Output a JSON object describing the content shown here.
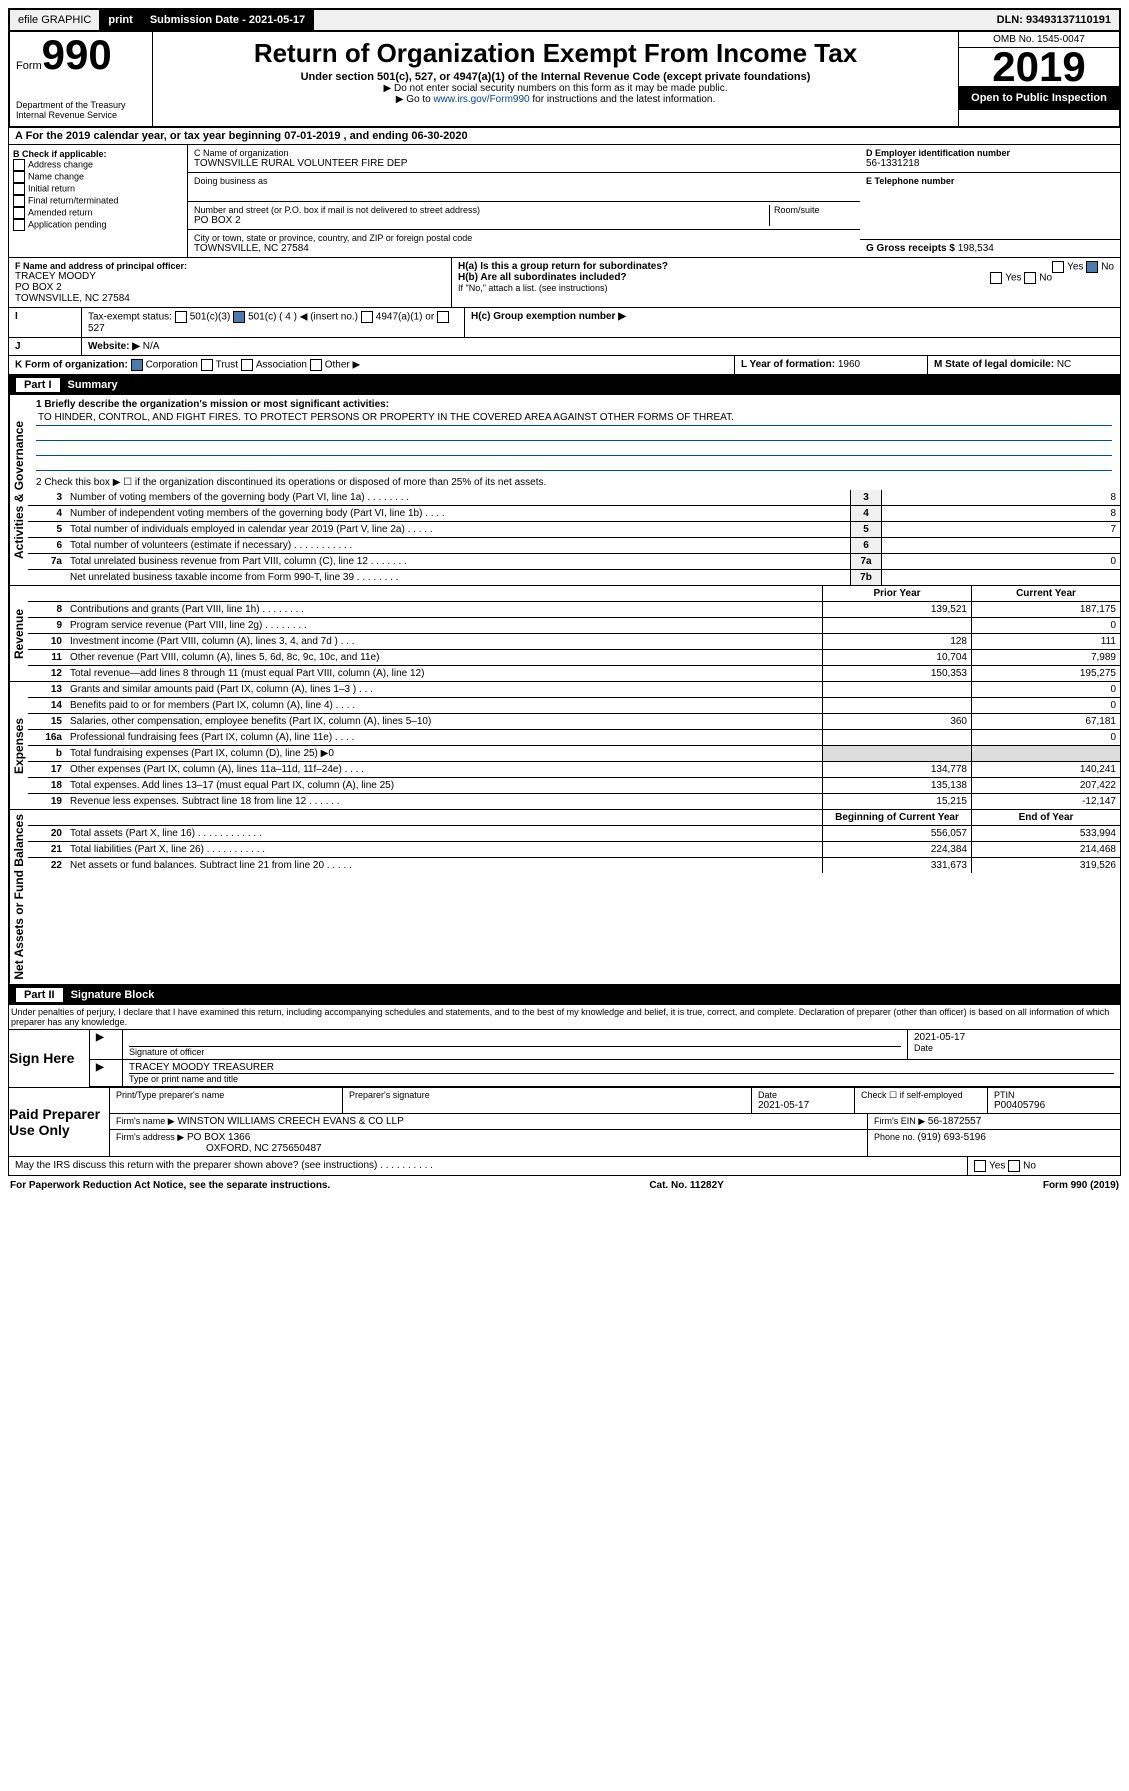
{
  "topbar": {
    "efile": "efile GRAPHIC",
    "print": "print",
    "sub_lbl": "Submission Date - ",
    "sub_date": "2021-05-17",
    "dln": "DLN: 93493137110191"
  },
  "hdr": {
    "form": "Form",
    "num": "990",
    "title": "Return of Organization Exempt From Income Tax",
    "sub": "Under section 501(c), 527, or 4947(a)(1) of the Internal Revenue Code (except private foundations)",
    "note1": "▶ Do not enter social security numbers on this form as it may be made public.",
    "note2a": "▶ Go to ",
    "note2link": "www.irs.gov/Form990",
    "note2b": " for instructions and the latest information.",
    "dept": "Department of the Treasury\nInternal Revenue Service",
    "omb": "OMB No. 1545-0047",
    "year": "2019",
    "badge": "Open to Public Inspection"
  },
  "a": {
    "txt": "For the 2019 calendar year, or tax year beginning 07-01-2019    , and ending 06-30-2020"
  },
  "b": {
    "hdr": "B Check if applicable:",
    "items": [
      "Address change",
      "Name change",
      "Initial return",
      "Final return/terminated",
      "Amended return",
      "Application pending"
    ]
  },
  "c": {
    "lbl": "C Name of organization",
    "name": "TOWNSVILLE RURAL VOLUNTEER FIRE DEP",
    "dba": "Doing business as",
    "addr_lbl": "Number and street (or P.O. box if mail is not delivered to street address)",
    "room": "Room/suite",
    "addr": "PO BOX 2",
    "city_lbl": "City or town, state or province, country, and ZIP or foreign postal code",
    "city": "TOWNSVILLE, NC  27584"
  },
  "d": {
    "lbl": "D Employer identification number",
    "val": "56-1331218"
  },
  "e": {
    "lbl": "E Telephone number"
  },
  "g": {
    "lbl": "G Gross receipts $ ",
    "val": "198,534"
  },
  "f": {
    "lbl": "F  Name and address of principal officer:",
    "name": "TRACEY MOODY",
    "addr": "PO BOX 2",
    "city": "TOWNSVILLE, NC  27584"
  },
  "h": {
    "a": "H(a)  Is this a group return for subordinates?",
    "b": "H(b)  Are all subordinates included?",
    "note": "If \"No,\" attach a list. (see instructions)",
    "c": "H(c)  Group exemption number ▶"
  },
  "i": {
    "lbl": "Tax-exempt status:",
    "opts": [
      "501(c)(3)",
      "501(c) ( 4 ) ◀ (insert no.)",
      "4947(a)(1) or",
      "527"
    ]
  },
  "j": {
    "lbl": "Website: ▶",
    "val": "N/A"
  },
  "k": {
    "lbl": "K Form of organization:",
    "opts": [
      "Corporation",
      "Trust",
      "Association",
      "Other ▶"
    ]
  },
  "l": {
    "lbl": "L Year of formation: ",
    "val": "1960"
  },
  "m": {
    "lbl": "M State of legal domicile: ",
    "val": "NC"
  },
  "part1": {
    "hdr": "Part I",
    "title": "Summary",
    "l1": "1   Briefly describe the organization's mission or most significant activities:",
    "mission": "TO HINDER, CONTROL, AND FIGHT FIRES. TO PROTECT PERSONS OR PROPERTY IN THE COVERED AREA AGAINST OTHER FORMS OF THREAT.",
    "l2": "2   Check this box ▶ ☐  if the organization discontinued its operations or disposed of more than 25% of its net assets.",
    "sections": [
      {
        "side": "Activities & Governance",
        "rows": [
          {
            "n": "3",
            "t": "Number of voting members of the governing body (Part VI, line 1a)  .   .   .   .   .   .   .   .",
            "b": "3",
            "v": "8"
          },
          {
            "n": "4",
            "t": "Number of independent voting members of the governing body (Part VI, line 1b)  .   .   .   .",
            "b": "4",
            "v": "8"
          },
          {
            "n": "5",
            "t": "Total number of individuals employed in calendar year 2019 (Part V, line 2a)  .   .   .   .   .",
            "b": "5",
            "v": "7"
          },
          {
            "n": "6",
            "t": "Total number of volunteers (estimate if necessary)  .   .   .   .   .   .   .   .   .   .   .",
            "b": "6",
            "v": ""
          },
          {
            "n": "7a",
            "t": "Total unrelated business revenue from Part VIII, column (C), line 12  .   .   .   .   .   .   .",
            "b": "7a",
            "v": "0"
          },
          {
            "n": "",
            "t": "Net unrelated business taxable income from Form 990-T, line 39  .   .   .   .   .   .   .   .",
            "b": "7b",
            "v": ""
          }
        ]
      },
      {
        "side": "Revenue",
        "hdr": {
          "prior": "Prior Year",
          "curr": "Current Year"
        },
        "rows": [
          {
            "n": "8",
            "t": "Contributions and grants (Part VIII, line 1h)  .   .   .   .   .   .   .   .",
            "p": "139,521",
            "c": "187,175"
          },
          {
            "n": "9",
            "t": "Program service revenue (Part VIII, line 2g)  .   .   .   .   .   .   .   .",
            "p": "",
            "c": "0"
          },
          {
            "n": "10",
            "t": "Investment income (Part VIII, column (A), lines 3, 4, and 7d )  .   .   .",
            "p": "128",
            "c": "111"
          },
          {
            "n": "11",
            "t": "Other revenue (Part VIII, column (A), lines 5, 6d, 8c, 9c, 10c, and 11e)",
            "p": "10,704",
            "c": "7,989"
          },
          {
            "n": "12",
            "t": "Total revenue—add lines 8 through 11 (must equal Part VIII, column (A), line 12)",
            "p": "150,353",
            "c": "195,275"
          }
        ]
      },
      {
        "side": "Expenses",
        "rows": [
          {
            "n": "13",
            "t": "Grants and similar amounts paid (Part IX, column (A), lines 1–3 )  .   .   .",
            "p": "",
            "c": "0"
          },
          {
            "n": "14",
            "t": "Benefits paid to or for members (Part IX, column (A), line 4)  .   .   .   .",
            "p": "",
            "c": "0"
          },
          {
            "n": "15",
            "t": "Salaries, other compensation, employee benefits (Part IX, column (A), lines 5–10)",
            "p": "360",
            "c": "67,181"
          },
          {
            "n": "16a",
            "t": "Professional fundraising fees (Part IX, column (A), line 11e)  .   .   .   .",
            "p": "",
            "c": "0"
          },
          {
            "n": "b",
            "t": "Total fundraising expenses (Part IX, column (D), line 25) ▶0",
            "p": "",
            "c": "",
            "grey": true
          },
          {
            "n": "17",
            "t": "Other expenses (Part IX, column (A), lines 11a–11d, 11f–24e)  .   .   .   .",
            "p": "134,778",
            "c": "140,241"
          },
          {
            "n": "18",
            "t": "Total expenses. Add lines 13–17 (must equal Part IX, column (A), line 25)",
            "p": "135,138",
            "c": "207,422"
          },
          {
            "n": "19",
            "t": "Revenue less expenses. Subtract line 18 from line 12  .   .   .   .   .   .",
            "p": "15,215",
            "c": "-12,147"
          }
        ]
      },
      {
        "side": "Net Assets or Fund Balances",
        "hdr": {
          "prior": "Beginning of Current Year",
          "curr": "End of Year"
        },
        "rows": [
          {
            "n": "20",
            "t": "Total assets (Part X, line 16)  .   .   .   .   .   .   .   .   .   .   .   .",
            "p": "556,057",
            "c": "533,994"
          },
          {
            "n": "21",
            "t": "Total liabilities (Part X, line 26)  .   .   .   .   .   .   .   .   .   .   .",
            "p": "224,384",
            "c": "214,468"
          },
          {
            "n": "22",
            "t": "Net assets or fund balances. Subtract line 21 from line 20 .   .   .   .   .",
            "p": "331,673",
            "c": "319,526"
          }
        ]
      }
    ]
  },
  "part2": {
    "hdr": "Part II",
    "title": "Signature Block",
    "declare": "Under penalties of perjury, I declare that I have examined this return, including accompanying schedules and statements, and to the best of my knowledge and belief, it is true, correct, and complete. Declaration of preparer (other than officer) is based on all information of which preparer has any knowledge.",
    "date": "2021-05-17",
    "sig_lbl": "Signature of officer",
    "date_lbl": "Date",
    "officer": "TRACEY MOODY  TREASURER",
    "type_lbl": "Type or print name and title",
    "sign": "Sign Here",
    "paid": "Paid Preparer Use Only",
    "prep_name_lbl": "Print/Type preparer's name",
    "prep_sig_lbl": "Preparer's signature",
    "prep_date_lbl": "Date",
    "prep_date": "2021-05-17",
    "self_lbl": "Check ☐ if self-employed",
    "ptin_lbl": "PTIN",
    "ptin": "P00405796",
    "firm_lbl": "Firm's name    ▶",
    "firm": "WINSTON WILLIAMS CREECH EVANS & CO LLP",
    "ein_lbl": "Firm's EIN ▶",
    "ein": "56-1872557",
    "addr_lbl": "Firm's address ▶",
    "addr": "PO BOX 1366",
    "city": "OXFORD, NC  275650487",
    "phone_lbl": "Phone no. ",
    "phone": "(919) 693-5196",
    "discuss": "May the IRS discuss this return with the preparer shown above? (see instructions)    .    .    .    .    .    .    .    .    .    ."
  },
  "footer": {
    "pra": "For Paperwork Reduction Act Notice, see the separate instructions.",
    "cat": "Cat. No. 11282Y",
    "form": "Form 990 (2019)"
  },
  "yes": "Yes",
  "no": "No"
}
